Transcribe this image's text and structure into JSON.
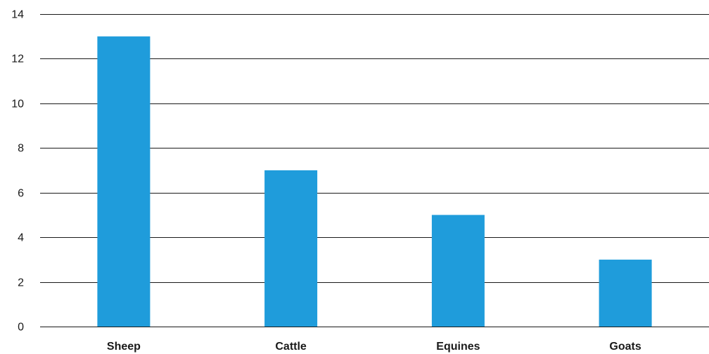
{
  "chart_data": {
    "type": "bar",
    "categories": [
      "Sheep",
      "Cattle",
      "Equines",
      "Goats"
    ],
    "values": [
      13,
      7,
      5,
      3
    ],
    "ylim": [
      0,
      14
    ],
    "yticks": [
      0,
      2,
      4,
      6,
      8,
      10,
      12,
      14
    ],
    "grid": true,
    "legend": "none",
    "colors": {
      "bar": "#1f9cdb",
      "gridline": "#1a1a1a",
      "text": "#1a1a1a"
    }
  }
}
